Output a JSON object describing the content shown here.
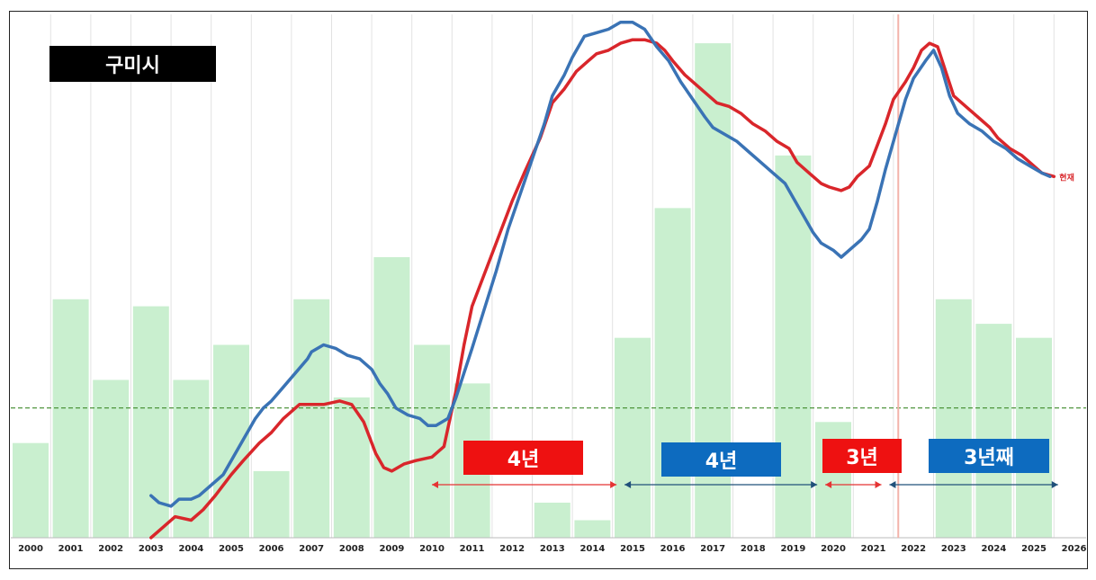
{
  "title": "구미시",
  "colors": {
    "bar": "#c9efcf",
    "red": "#d9262b",
    "blue": "#3a73b5",
    "dashed": "#3e8a2a",
    "grid": "#e2e2e2",
    "label_red": "#ee1111",
    "label_blue": "#0d6bbf",
    "arrow_red": "#e53333",
    "arrow_blue": "#20507a",
    "marker": "#f3b3aa"
  },
  "current_label": "현재",
  "period_labels": [
    {
      "text": "4년",
      "color": "red"
    },
    {
      "text": "4년",
      "color": "blue"
    },
    {
      "text": "3년",
      "color": "red"
    },
    {
      "text": "3년째",
      "color": "blue"
    }
  ],
  "chart_data": {
    "type": "bar+line",
    "categories": [
      "2000",
      "2001",
      "2002",
      "2003",
      "2004",
      "2005",
      "2006",
      "2007",
      "2008",
      "2009",
      "2010",
      "2011",
      "2012",
      "2013",
      "2014",
      "2015",
      "2016",
      "2017",
      "2018",
      "2019",
      "2020",
      "2021",
      "2022",
      "2023",
      "2024",
      "2025",
      "2026"
    ],
    "bar_values": [
      27,
      68,
      45,
      66,
      45,
      55,
      19,
      68,
      40,
      80,
      55,
      44,
      0,
      10,
      5,
      57,
      94,
      141,
      0,
      109,
      33,
      0,
      0,
      68,
      61,
      57,
      0
    ],
    "reference_line": 37,
    "series": [
      {
        "color": "red",
        "points": [
          [
            2003.0,
            0
          ],
          [
            2003.3,
            3
          ],
          [
            2003.6,
            6
          ],
          [
            2004.0,
            5
          ],
          [
            2004.3,
            8
          ],
          [
            2004.6,
            12
          ],
          [
            2005.0,
            18
          ],
          [
            2005.3,
            22
          ],
          [
            2005.7,
            27
          ],
          [
            2006.0,
            30
          ],
          [
            2006.3,
            34
          ],
          [
            2006.7,
            38
          ],
          [
            2007.0,
            38
          ],
          [
            2007.3,
            38
          ],
          [
            2007.7,
            39
          ],
          [
            2008.0,
            38
          ],
          [
            2008.3,
            33
          ],
          [
            2008.6,
            24
          ],
          [
            2008.8,
            20
          ],
          [
            2009.0,
            19
          ],
          [
            2009.3,
            21
          ],
          [
            2009.6,
            22
          ],
          [
            2010.0,
            23
          ],
          [
            2010.3,
            26
          ],
          [
            2010.6,
            42
          ],
          [
            2010.8,
            55
          ],
          [
            2011.0,
            66
          ],
          [
            2011.3,
            75
          ],
          [
            2011.7,
            87
          ],
          [
            2012.0,
            96
          ],
          [
            2012.3,
            104
          ],
          [
            2012.7,
            114
          ],
          [
            2013.0,
            124
          ],
          [
            2013.3,
            128
          ],
          [
            2013.6,
            133
          ],
          [
            2013.9,
            136
          ],
          [
            2014.1,
            138
          ],
          [
            2014.4,
            139
          ],
          [
            2014.7,
            141
          ],
          [
            2015.0,
            142
          ],
          [
            2015.3,
            142
          ],
          [
            2015.6,
            141
          ],
          [
            2015.8,
            139
          ],
          [
            2016.0,
            136
          ],
          [
            2016.3,
            132
          ],
          [
            2016.6,
            129
          ],
          [
            2016.9,
            126
          ],
          [
            2017.1,
            124
          ],
          [
            2017.4,
            123
          ],
          [
            2017.7,
            121
          ],
          [
            2018.0,
            118
          ],
          [
            2018.3,
            116
          ],
          [
            2018.6,
            113
          ],
          [
            2018.9,
            111
          ],
          [
            2019.1,
            107
          ],
          [
            2019.4,
            104
          ],
          [
            2019.7,
            101
          ],
          [
            2019.9,
            100
          ],
          [
            2020.2,
            99
          ],
          [
            2020.4,
            100
          ],
          [
            2020.6,
            103
          ],
          [
            2020.9,
            106
          ],
          [
            2021.1,
            112
          ],
          [
            2021.3,
            118
          ],
          [
            2021.5,
            125
          ],
          [
            2021.8,
            130
          ],
          [
            2022.0,
            134
          ],
          [
            2022.2,
            139
          ],
          [
            2022.4,
            141
          ],
          [
            2022.6,
            140
          ],
          [
            2022.8,
            133
          ],
          [
            2023.0,
            126
          ],
          [
            2023.3,
            123
          ],
          [
            2023.6,
            120
          ],
          [
            2023.9,
            117
          ],
          [
            2024.1,
            114
          ],
          [
            2024.4,
            111
          ],
          [
            2024.7,
            109
          ],
          [
            2024.9,
            107
          ],
          [
            2025.2,
            104
          ],
          [
            2025.5,
            103
          ]
        ]
      },
      {
        "color": "blue",
        "points": [
          [
            2003.0,
            12
          ],
          [
            2003.2,
            10
          ],
          [
            2003.5,
            9
          ],
          [
            2003.7,
            11
          ],
          [
            2004.0,
            11
          ],
          [
            2004.2,
            12
          ],
          [
            2004.5,
            15
          ],
          [
            2004.8,
            18
          ],
          [
            2005.0,
            22
          ],
          [
            2005.3,
            28
          ],
          [
            2005.6,
            34
          ],
          [
            2005.8,
            37
          ],
          [
            2006.0,
            39
          ],
          [
            2006.3,
            43
          ],
          [
            2006.6,
            47
          ],
          [
            2006.9,
            51
          ],
          [
            2007.0,
            53
          ],
          [
            2007.3,
            55
          ],
          [
            2007.6,
            54
          ],
          [
            2007.9,
            52
          ],
          [
            2008.2,
            51
          ],
          [
            2008.5,
            48
          ],
          [
            2008.7,
            44
          ],
          [
            2008.9,
            41
          ],
          [
            2009.1,
            37
          ],
          [
            2009.4,
            35
          ],
          [
            2009.7,
            34
          ],
          [
            2009.9,
            32
          ],
          [
            2010.1,
            32
          ],
          [
            2010.4,
            34
          ],
          [
            2010.6,
            40
          ],
          [
            2010.8,
            47
          ],
          [
            2011.0,
            54
          ],
          [
            2011.3,
            65
          ],
          [
            2011.6,
            76
          ],
          [
            2011.9,
            88
          ],
          [
            2012.2,
            98
          ],
          [
            2012.5,
            108
          ],
          [
            2012.8,
            118
          ],
          [
            2013.0,
            126
          ],
          [
            2013.3,
            132
          ],
          [
            2013.5,
            137
          ],
          [
            2013.8,
            143
          ],
          [
            2014.1,
            144
          ],
          [
            2014.4,
            145
          ],
          [
            2014.7,
            147
          ],
          [
            2015.0,
            147
          ],
          [
            2015.3,
            145
          ],
          [
            2015.6,
            140
          ],
          [
            2015.9,
            136
          ],
          [
            2016.2,
            130
          ],
          [
            2016.5,
            125
          ],
          [
            2016.8,
            120
          ],
          [
            2017.0,
            117
          ],
          [
            2017.3,
            115
          ],
          [
            2017.6,
            113
          ],
          [
            2017.9,
            110
          ],
          [
            2018.2,
            107
          ],
          [
            2018.5,
            104
          ],
          [
            2018.8,
            101
          ],
          [
            2019.0,
            97
          ],
          [
            2019.2,
            93
          ],
          [
            2019.5,
            87
          ],
          [
            2019.7,
            84
          ],
          [
            2020.0,
            82
          ],
          [
            2020.2,
            80
          ],
          [
            2020.4,
            82
          ],
          [
            2020.7,
            85
          ],
          [
            2020.9,
            88
          ],
          [
            2021.1,
            96
          ],
          [
            2021.3,
            105
          ],
          [
            2021.5,
            113
          ],
          [
            2021.8,
            125
          ],
          [
            2022.0,
            131
          ],
          [
            2022.3,
            136
          ],
          [
            2022.5,
            139
          ],
          [
            2022.7,
            134
          ],
          [
            2022.9,
            126
          ],
          [
            2023.1,
            121
          ],
          [
            2023.4,
            118
          ],
          [
            2023.7,
            116
          ],
          [
            2024.0,
            113
          ],
          [
            2024.3,
            111
          ],
          [
            2024.6,
            108
          ],
          [
            2024.9,
            106
          ],
          [
            2025.2,
            104
          ],
          [
            2025.4,
            103
          ]
        ]
      }
    ],
    "intervals": [
      {
        "start": 2010.0,
        "end": 2014.6,
        "color": "red",
        "label": "4년"
      },
      {
        "start": 2014.8,
        "end": 2019.6,
        "color": "blue",
        "label": "4년"
      },
      {
        "start": 2019.8,
        "end": 2021.2,
        "color": "red",
        "label": "3년"
      },
      {
        "start": 2021.4,
        "end": 2025.6,
        "color": "blue",
        "label": "3년째"
      }
    ],
    "marker_x": 2021.62
  }
}
